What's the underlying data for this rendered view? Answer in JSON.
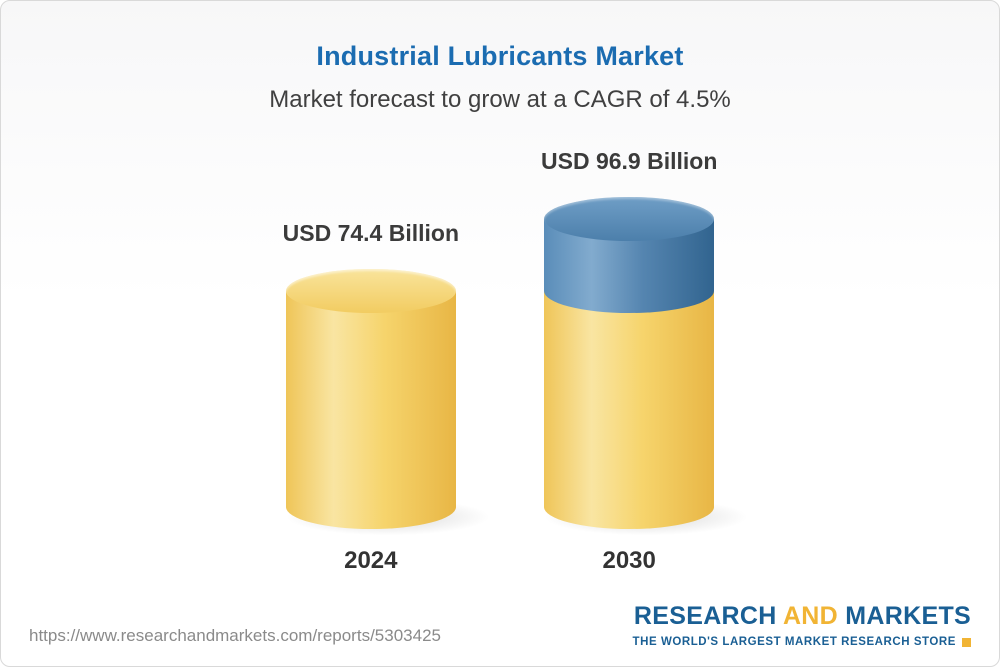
{
  "page": {
    "source_url": "https://www.researchandmarkets.com/reports/5303425",
    "logo": {
      "part1": "RESEARCH",
      "part2": "AND",
      "part3": "MARKETS",
      "tagline": "THE WORLD'S LARGEST MARKET RESEARCH STORE"
    }
  },
  "chart_data": {
    "type": "bar",
    "title": "Industrial Lubricants Market",
    "subtitle": "Market forecast to grow at a CAGR of 4.5%",
    "cagr": "4.5%",
    "unit": "USD Billion",
    "categories": [
      "2024",
      "2030"
    ],
    "values": [
      74.4,
      96.9
    ],
    "value_labels": [
      "USD 74.4 Billion",
      "USD 96.9 Billion"
    ],
    "legend_position": "none",
    "grid": false,
    "colors": {
      "base_segment": "#F5CE61",
      "growth_segment": "#4A7FAD",
      "title": "#1B6CB1",
      "subtitle_text": "#404040",
      "logo_blue": "#1A5F94",
      "logo_gold": "#F1B434"
    }
  }
}
